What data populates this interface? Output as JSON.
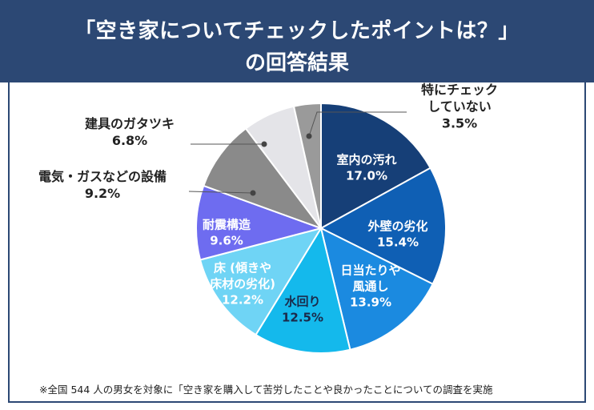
{
  "header": {
    "title_line1": "「空き家についてチェックしたポイントは？」",
    "title_line2": "の回答結果"
  },
  "footnote": "※全国 544 人の男女を対象に「空き家を購入して苦労したことや良かったことについての調査を実施",
  "colors": {
    "header_bg": "#2c4874",
    "frame_border": "#2c4874"
  },
  "chart_data": {
    "type": "pie",
    "start_angle_deg": 0,
    "direction": "clockwise",
    "slices": [
      {
        "label": [
          "室内の汚れ"
        ],
        "value": 17.0,
        "value_label": "17.0%",
        "color": "#163f77",
        "text_color": "#ffffff"
      },
      {
        "label": [
          "外壁の劣化"
        ],
        "value": 15.4,
        "value_label": "15.4%",
        "color": "#0f5fb4",
        "text_color": "#ffffff"
      },
      {
        "label": [
          "日当たりや",
          "風通し"
        ],
        "value": 13.9,
        "value_label": "13.9%",
        "color": "#1b8ae0",
        "text_color": "#ffffff"
      },
      {
        "label": [
          "水回り"
        ],
        "value": 12.5,
        "value_label": "12.5%",
        "color": "#14b9ec",
        "text_color": "#1b2a4a"
      },
      {
        "label": [
          "床 (傾きや",
          "床材の劣化)"
        ],
        "value": 12.2,
        "value_label": "12.2%",
        "color": "#6fd4f5",
        "text_color": "#ffffff"
      },
      {
        "label": [
          "耐震構造"
        ],
        "value": 9.6,
        "value_label": "9.6%",
        "color": "#6e6cf0",
        "text_color": "#ffffff"
      },
      {
        "label": [
          "電気・ガスなどの設備"
        ],
        "value": 9.2,
        "value_label": "9.2%",
        "color": "#8a8a8a",
        "text_color": "#222222"
      },
      {
        "label": [
          "建具のガタツキ"
        ],
        "value": 6.8,
        "value_label": "6.8%",
        "color": "#e4e4e8",
        "text_color": "#222222"
      },
      {
        "label": [
          "特にチェック",
          "していない"
        ],
        "value": 3.5,
        "value_label": "3.5%",
        "color": "#9a9a9a",
        "text_color": "#222222"
      }
    ]
  }
}
